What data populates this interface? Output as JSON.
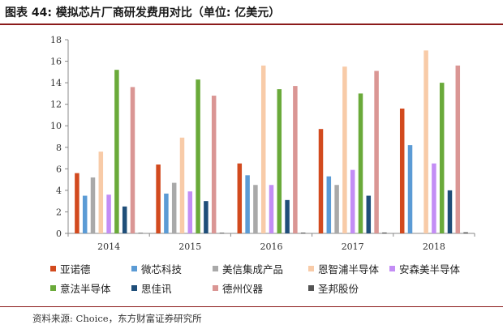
{
  "figure": {
    "title": "图表 44: 模拟芯片厂商研发费用对比（单位: 亿美元）",
    "source": "资料来源: Choice，东方财富证券研究所"
  },
  "chart_data": {
    "type": "bar",
    "title": "模拟芯片厂商研发费用对比（单位: 亿美元）",
    "xlabel": "",
    "ylabel": "",
    "ylim": [
      0,
      18
    ],
    "yticks": [
      0,
      2,
      4,
      6,
      8,
      10,
      12,
      14,
      16,
      18
    ],
    "grid": false,
    "legend_position": "bottom",
    "categories": [
      "2014",
      "2015",
      "2016",
      "2017",
      "2018"
    ],
    "series": [
      {
        "name": "亚诺德",
        "color": "#d24a1e",
        "values": [
          5.6,
          6.4,
          6.5,
          9.7,
          11.6
        ]
      },
      {
        "name": "微芯科技",
        "color": "#5b9bd5",
        "values": [
          3.5,
          3.7,
          5.4,
          5.3,
          8.2
        ]
      },
      {
        "name": "美信集成产品",
        "color": "#a9a9a9",
        "values": [
          5.2,
          4.7,
          4.5,
          4.5,
          null
        ]
      },
      {
        "name": "恩智浦半导体",
        "color": "#f8cba8",
        "values": [
          7.6,
          8.9,
          15.6,
          15.5,
          17.0
        ]
      },
      {
        "name": "安森美半导体",
        "color": "#c38df5",
        "values": [
          3.6,
          3.9,
          4.5,
          5.9,
          6.5
        ]
      },
      {
        "name": "意法半导体",
        "color": "#6aaa3a",
        "values": [
          15.2,
          14.3,
          13.4,
          13.0,
          14.0
        ]
      },
      {
        "name": "思佳讯",
        "color": "#1f4e79",
        "values": [
          2.5,
          3.0,
          3.1,
          3.5,
          4.0
        ]
      },
      {
        "name": "德州仪器",
        "color": "#da9694",
        "values": [
          13.6,
          12.8,
          13.7,
          15.1,
          15.6
        ]
      },
      {
        "name": "圣邦股份",
        "color": "#555555",
        "values": [
          0.05,
          0.06,
          0.07,
          0.08,
          0.1
        ]
      }
    ]
  }
}
